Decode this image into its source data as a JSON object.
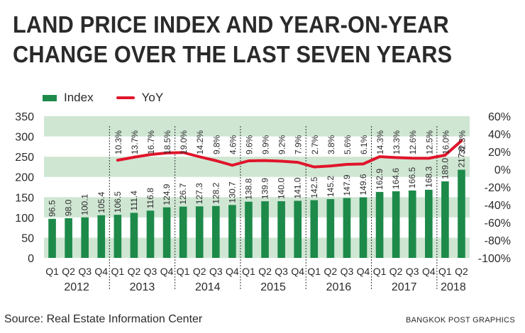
{
  "header": {
    "title_line1": "LAND PRICE INDEX AND YEAR-ON-YEAR",
    "title_line2": "CHANGE OVER THE LAST SEVEN YEARS"
  },
  "footer": {
    "source": "Source: Real Estate Information Center",
    "credit": "BANGKOK POST GRAPHICS"
  },
  "colors": {
    "bar": "#1d8a4a",
    "line": "#e0152b",
    "band": "#cfe6d3"
  },
  "chart_data": {
    "type": "bar",
    "title": "LAND PRICE INDEX AND YEAR-ON-YEAR CHANGE OVER THE LAST SEVEN YEARS",
    "legend": [
      "Index",
      "YoY"
    ],
    "quarters": [
      "Q1",
      "Q2",
      "Q3",
      "Q4",
      "Q1",
      "Q2",
      "Q3",
      "Q4",
      "Q1",
      "Q2",
      "Q3",
      "Q4",
      "Q1",
      "Q2",
      "Q3",
      "Q4",
      "Q1",
      "Q2",
      "Q3",
      "Q4",
      "Q1",
      "Q2",
      "Q3",
      "Q4",
      "Q1",
      "Q2"
    ],
    "years": [
      {
        "label": "2012",
        "count": 4
      },
      {
        "label": "2013",
        "count": 4
      },
      {
        "label": "2014",
        "count": 4
      },
      {
        "label": "2015",
        "count": 4
      },
      {
        "label": "2016",
        "count": 4
      },
      {
        "label": "2017",
        "count": 4
      },
      {
        "label": "2018",
        "count": 2
      }
    ],
    "index_values": [
      96.5,
      98.0,
      100.1,
      105.4,
      106.5,
      111.4,
      116.8,
      124.9,
      126.7,
      127.3,
      128.2,
      130.7,
      138.8,
      139.9,
      140.0,
      141.0,
      142.5,
      145.2,
      147.9,
      149.6,
      162.9,
      164.6,
      166.5,
      168.3,
      189.0,
      217.8
    ],
    "index_labels": [
      "96.5",
      "98.0",
      "100.1",
      "105.4",
      "106.5",
      "111.4",
      "116.8",
      "124.9",
      "126.7",
      "127.3",
      "128.2",
      "130.7",
      "138.8",
      "139.9",
      "140.0",
      "141.0",
      "142.5",
      "145.2",
      "147.9",
      "149.6",
      "162.9",
      "164.6",
      "166.5",
      "168.3",
      "189.0",
      "217.8"
    ],
    "yoy_values": [
      null,
      null,
      null,
      null,
      10.3,
      13.7,
      16.7,
      18.5,
      19.0,
      14.2,
      9.8,
      4.6,
      9.6,
      9.9,
      9.2,
      7.9,
      2.7,
      3.8,
      5.6,
      6.1,
      14.3,
      13.3,
      12.6,
      12.5,
      16.0,
      32.3
    ],
    "yoy_labels": [
      "",
      "",
      "",
      "",
      "10.3%",
      "13.7%",
      "16.7%",
      "18.5%",
      "19.0%",
      "14.2%",
      "9.8%",
      "4.6%",
      "9.6%",
      "9.9%",
      "9.2%",
      "7.9%",
      "2.7%",
      "3.8%",
      "5.6%",
      "6.1%",
      "14.3%",
      "13.3%",
      "12.6%",
      "12.5%",
      "16.0%",
      "32.3%"
    ],
    "left_axis": {
      "min": 0,
      "max": 350,
      "ticks": [
        "0",
        "50",
        "100",
        "150",
        "200",
        "250",
        "300",
        "350"
      ]
    },
    "right_axis": {
      "min": -100,
      "max": 60,
      "ticks": [
        "-100%",
        "-80%",
        "-60%",
        "-40%",
        "-20%",
        "0%",
        "20%",
        "40%",
        "60%"
      ]
    }
  }
}
